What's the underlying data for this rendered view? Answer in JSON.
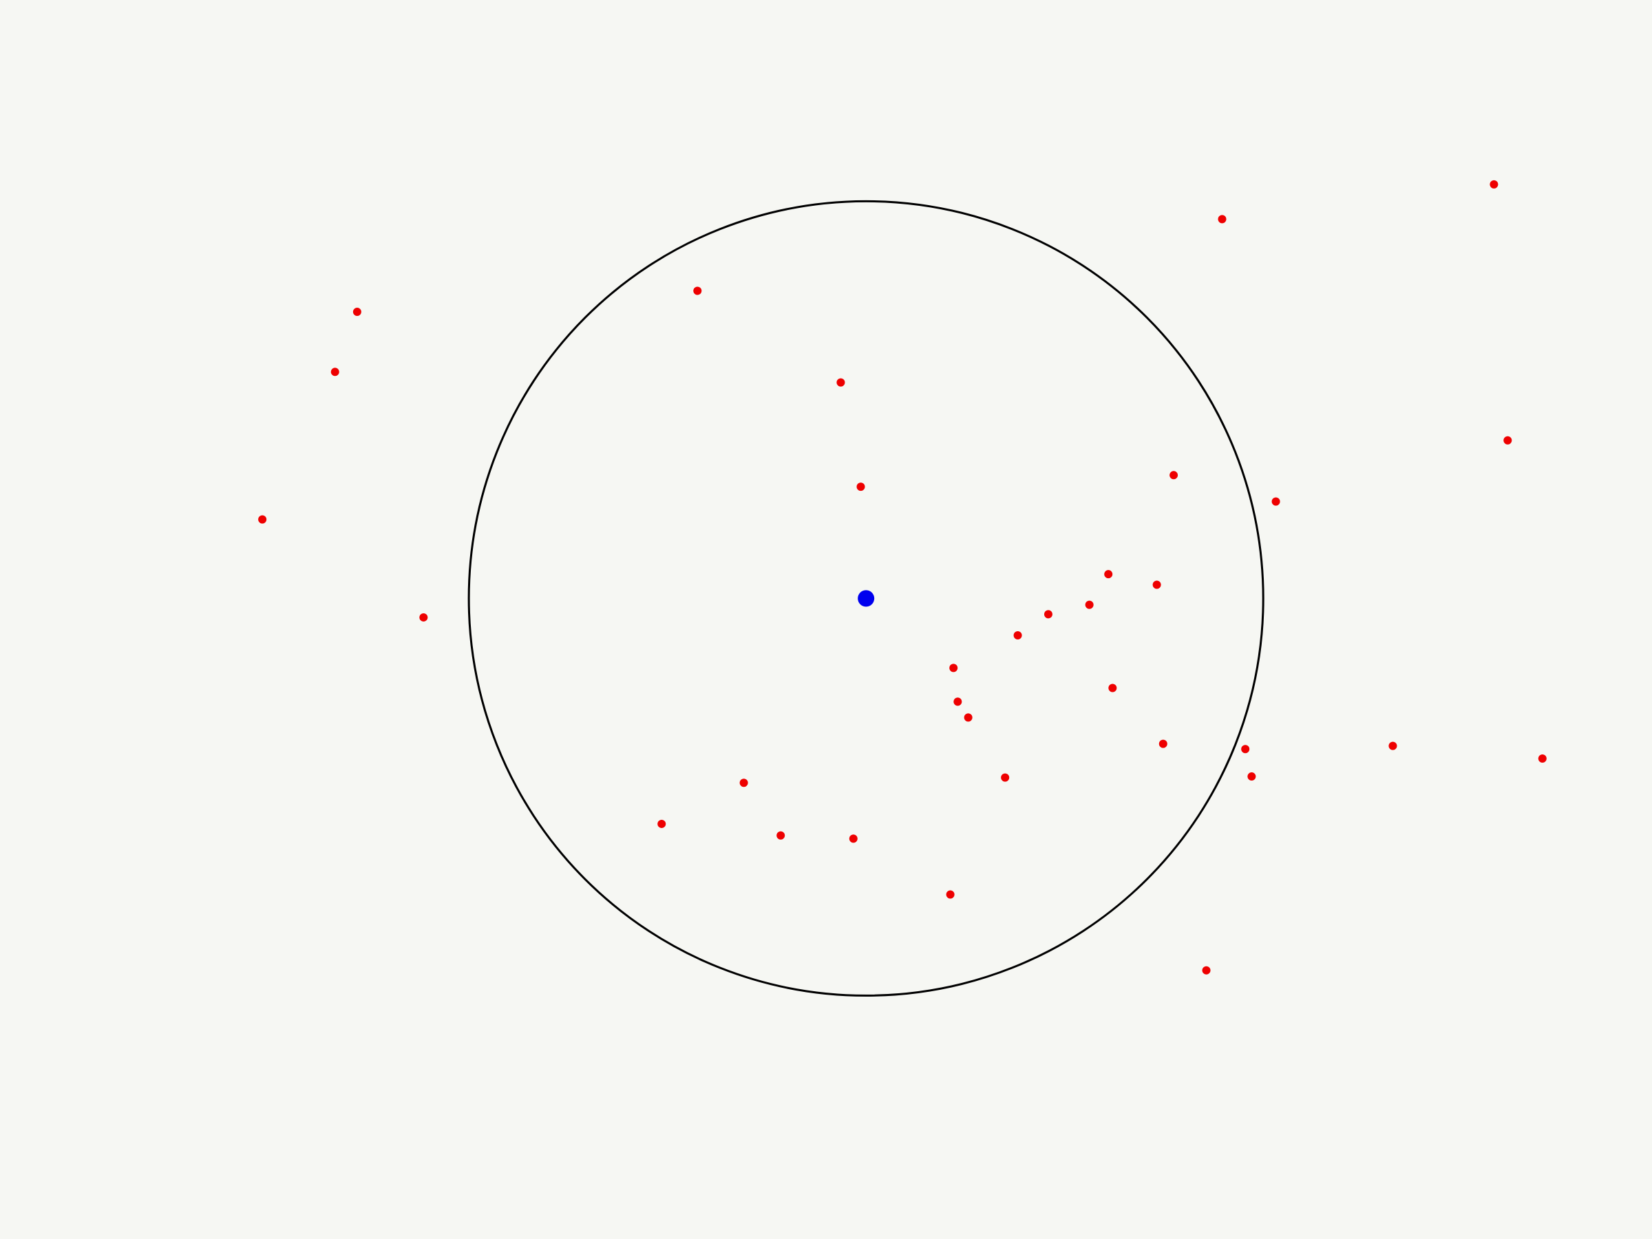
{
  "colors": {
    "background": "#f6f7f3",
    "circle_stroke": "#000000",
    "center_point": "#0000ee",
    "points": "#ee0000"
  },
  "chart_data": {
    "type": "scatter",
    "title": "",
    "xlabel": "",
    "ylabel": "",
    "grid": false,
    "axes_visible": false,
    "xlim": [
      0,
      1568
    ],
    "ylim": [
      1176,
      0
    ],
    "center": {
      "x": 822,
      "y": 568
    },
    "circle": {
      "cx": 822,
      "cy": 568,
      "r": 377
    },
    "points": [
      {
        "x": 662,
        "y": 276
      },
      {
        "x": 798,
        "y": 363
      },
      {
        "x": 817,
        "y": 462
      },
      {
        "x": 1114,
        "y": 451
      },
      {
        "x": 1052,
        "y": 545
      },
      {
        "x": 1098,
        "y": 555
      },
      {
        "x": 1034,
        "y": 574
      },
      {
        "x": 995,
        "y": 583
      },
      {
        "x": 966,
        "y": 603
      },
      {
        "x": 905,
        "y": 634
      },
      {
        "x": 909,
        "y": 666
      },
      {
        "x": 919,
        "y": 681
      },
      {
        "x": 1056,
        "y": 653
      },
      {
        "x": 1104,
        "y": 706
      },
      {
        "x": 1182,
        "y": 711
      },
      {
        "x": 1188,
        "y": 737
      },
      {
        "x": 954,
        "y": 738
      },
      {
        "x": 706,
        "y": 743
      },
      {
        "x": 628,
        "y": 782
      },
      {
        "x": 741,
        "y": 793
      },
      {
        "x": 810,
        "y": 796
      },
      {
        "x": 902,
        "y": 849
      },
      {
        "x": 1160,
        "y": 208
      },
      {
        "x": 1418,
        "y": 175
      },
      {
        "x": 1431,
        "y": 418
      },
      {
        "x": 1211,
        "y": 476
      },
      {
        "x": 339,
        "y": 296
      },
      {
        "x": 318,
        "y": 353
      },
      {
        "x": 249,
        "y": 493
      },
      {
        "x": 402,
        "y": 586
      },
      {
        "x": 1322,
        "y": 708
      },
      {
        "x": 1464,
        "y": 720
      },
      {
        "x": 1145,
        "y": 921
      }
    ]
  }
}
